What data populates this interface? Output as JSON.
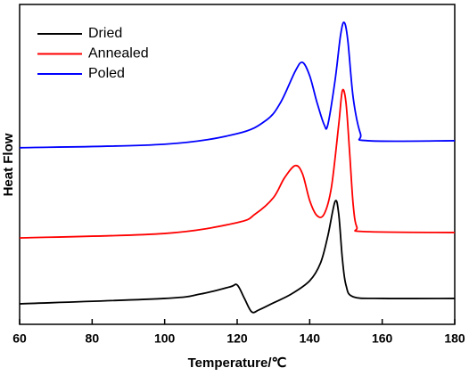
{
  "chart_data": {
    "type": "line",
    "x_label": "Temperature/℃",
    "y_label": "Heat Flow",
    "xlim": [
      60,
      180
    ],
    "xticks": [
      60,
      80,
      100,
      120,
      140,
      160,
      180
    ],
    "ylim": [
      0,
      100
    ],
    "legend": "upper-left",
    "series": [
      {
        "name": "Dried",
        "color": "#000000",
        "x": [
          60,
          100,
          110,
          118,
          120,
          122,
          124,
          126,
          130,
          135,
          140,
          143,
          145,
          147,
          148,
          149,
          150,
          152,
          160,
          180
        ],
        "values": [
          6.4,
          8.1,
          9.5,
          11.7,
          12.3,
          8.1,
          3.9,
          4.5,
          6.7,
          9.5,
          13.6,
          19.2,
          27.6,
          38.4,
          34.5,
          20.6,
          12.3,
          8.6,
          8.1,
          8.1
        ]
      },
      {
        "name": "Annealed",
        "color": "#ff0000",
        "x": [
          60,
          100,
          120,
          125,
          130,
          133,
          136,
          138,
          140,
          142,
          144,
          146,
          148,
          149,
          150,
          151,
          152,
          153,
          155,
          180
        ],
        "values": [
          27.0,
          28.4,
          31.8,
          34.5,
          39.6,
          45.7,
          49.6,
          47.1,
          38.7,
          34.0,
          34.5,
          42.9,
          62.4,
          73.0,
          69.4,
          54.0,
          37.3,
          30.4,
          29.0,
          28.7
        ]
      },
      {
        "name": "Poled",
        "color": "#0000ff",
        "x": [
          60,
          100,
          120,
          128,
          132,
          136,
          138,
          140,
          142,
          144,
          145,
          147,
          148.5,
          149.5,
          150.5,
          152,
          154,
          156,
          180
        ],
        "values": [
          55.2,
          56.3,
          59.6,
          63.8,
          69.4,
          79.1,
          81.9,
          77.7,
          69.4,
          62.4,
          62.4,
          76.3,
          90.3,
          94.4,
          88.9,
          70.8,
          59.6,
          57.4,
          57.4
        ]
      }
    ]
  }
}
